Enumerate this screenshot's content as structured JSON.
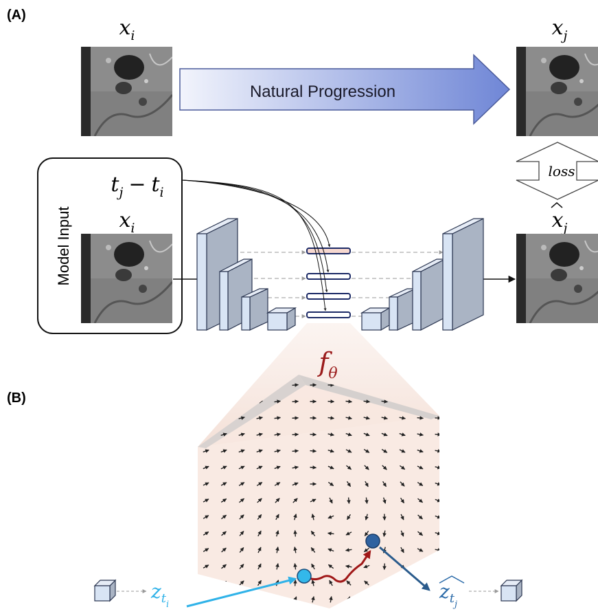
{
  "panel_a": {
    "label": "(A)",
    "input_image_label": {
      "base": "x",
      "sub": "i"
    },
    "progression_label": "Natural Progression",
    "target_image_label": {
      "base": "x",
      "sub": "j"
    },
    "loss_label": "loss",
    "time_label": {
      "base1": "t",
      "sub1": "j",
      "op": "−",
      "base2": "t",
      "sub2": "i"
    },
    "model_input_label": "Model Input",
    "model_input_image_label": {
      "base": "x",
      "sub": "i"
    },
    "output_label": {
      "base": "x",
      "sub": "j"
    },
    "function_label": {
      "base": "f",
      "sub": "θ"
    }
  },
  "panel_b": {
    "label": "(B)",
    "start_label": {
      "base": "z",
      "sub": "t",
      "subsub": "i"
    },
    "end_label": {
      "base": "z",
      "sub": "t",
      "subsub": "j"
    }
  }
}
